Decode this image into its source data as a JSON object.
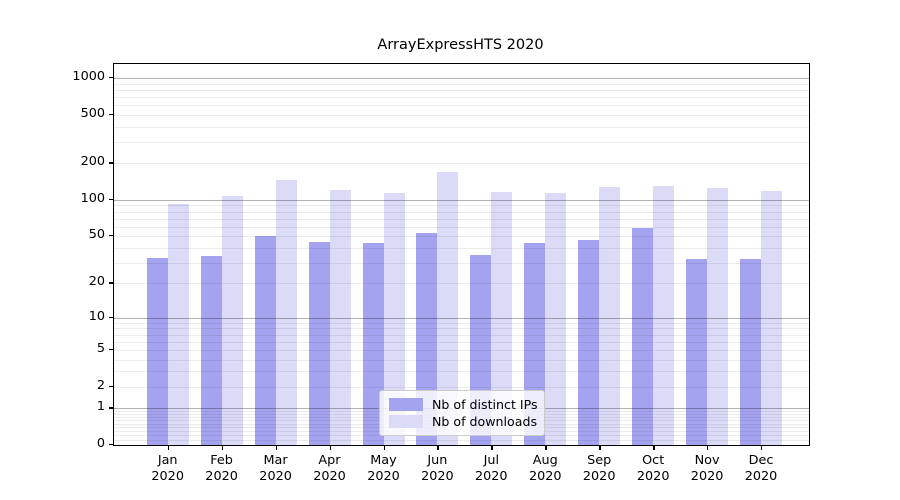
{
  "title": "ArrayExpressHTS 2020",
  "chart_data": {
    "type": "bar",
    "title": "ArrayExpressHTS 2020",
    "categories": [
      "Jan 2020",
      "Feb 2020",
      "Mar 2020",
      "Apr 2020",
      "May 2020",
      "Jun 2020",
      "Jul 2020",
      "Aug 2020",
      "Sep 2020",
      "Oct 2020",
      "Nov 2020",
      "Dec 2020"
    ],
    "series": [
      {
        "name": "Nb of distinct IPs",
        "color": "#a3a3f0",
        "values": [
          33,
          34,
          50,
          45,
          44,
          53,
          35,
          44,
          46,
          58,
          32,
          32
        ]
      },
      {
        "name": "Nb of downloads",
        "color": "#dbdbf8",
        "values": [
          92,
          107,
          145,
          121,
          113,
          170,
          115,
          114,
          128,
          131,
          126,
          118
        ]
      }
    ],
    "xlabel": "",
    "ylabel": "",
    "yscale": "log1p",
    "ylim": [
      0,
      1300
    ],
    "yticks": [
      0,
      1,
      2,
      5,
      10,
      20,
      50,
      100,
      200,
      500,
      1000
    ],
    "grid": true,
    "legend_position": "lower-center"
  },
  "colors": {
    "bar_distinct_ips": "#a3a3f0",
    "bar_downloads": "#dbdbf8",
    "major_grid": "#b2b2b2",
    "minor_grid": "#ececec",
    "axis": "#000000"
  }
}
